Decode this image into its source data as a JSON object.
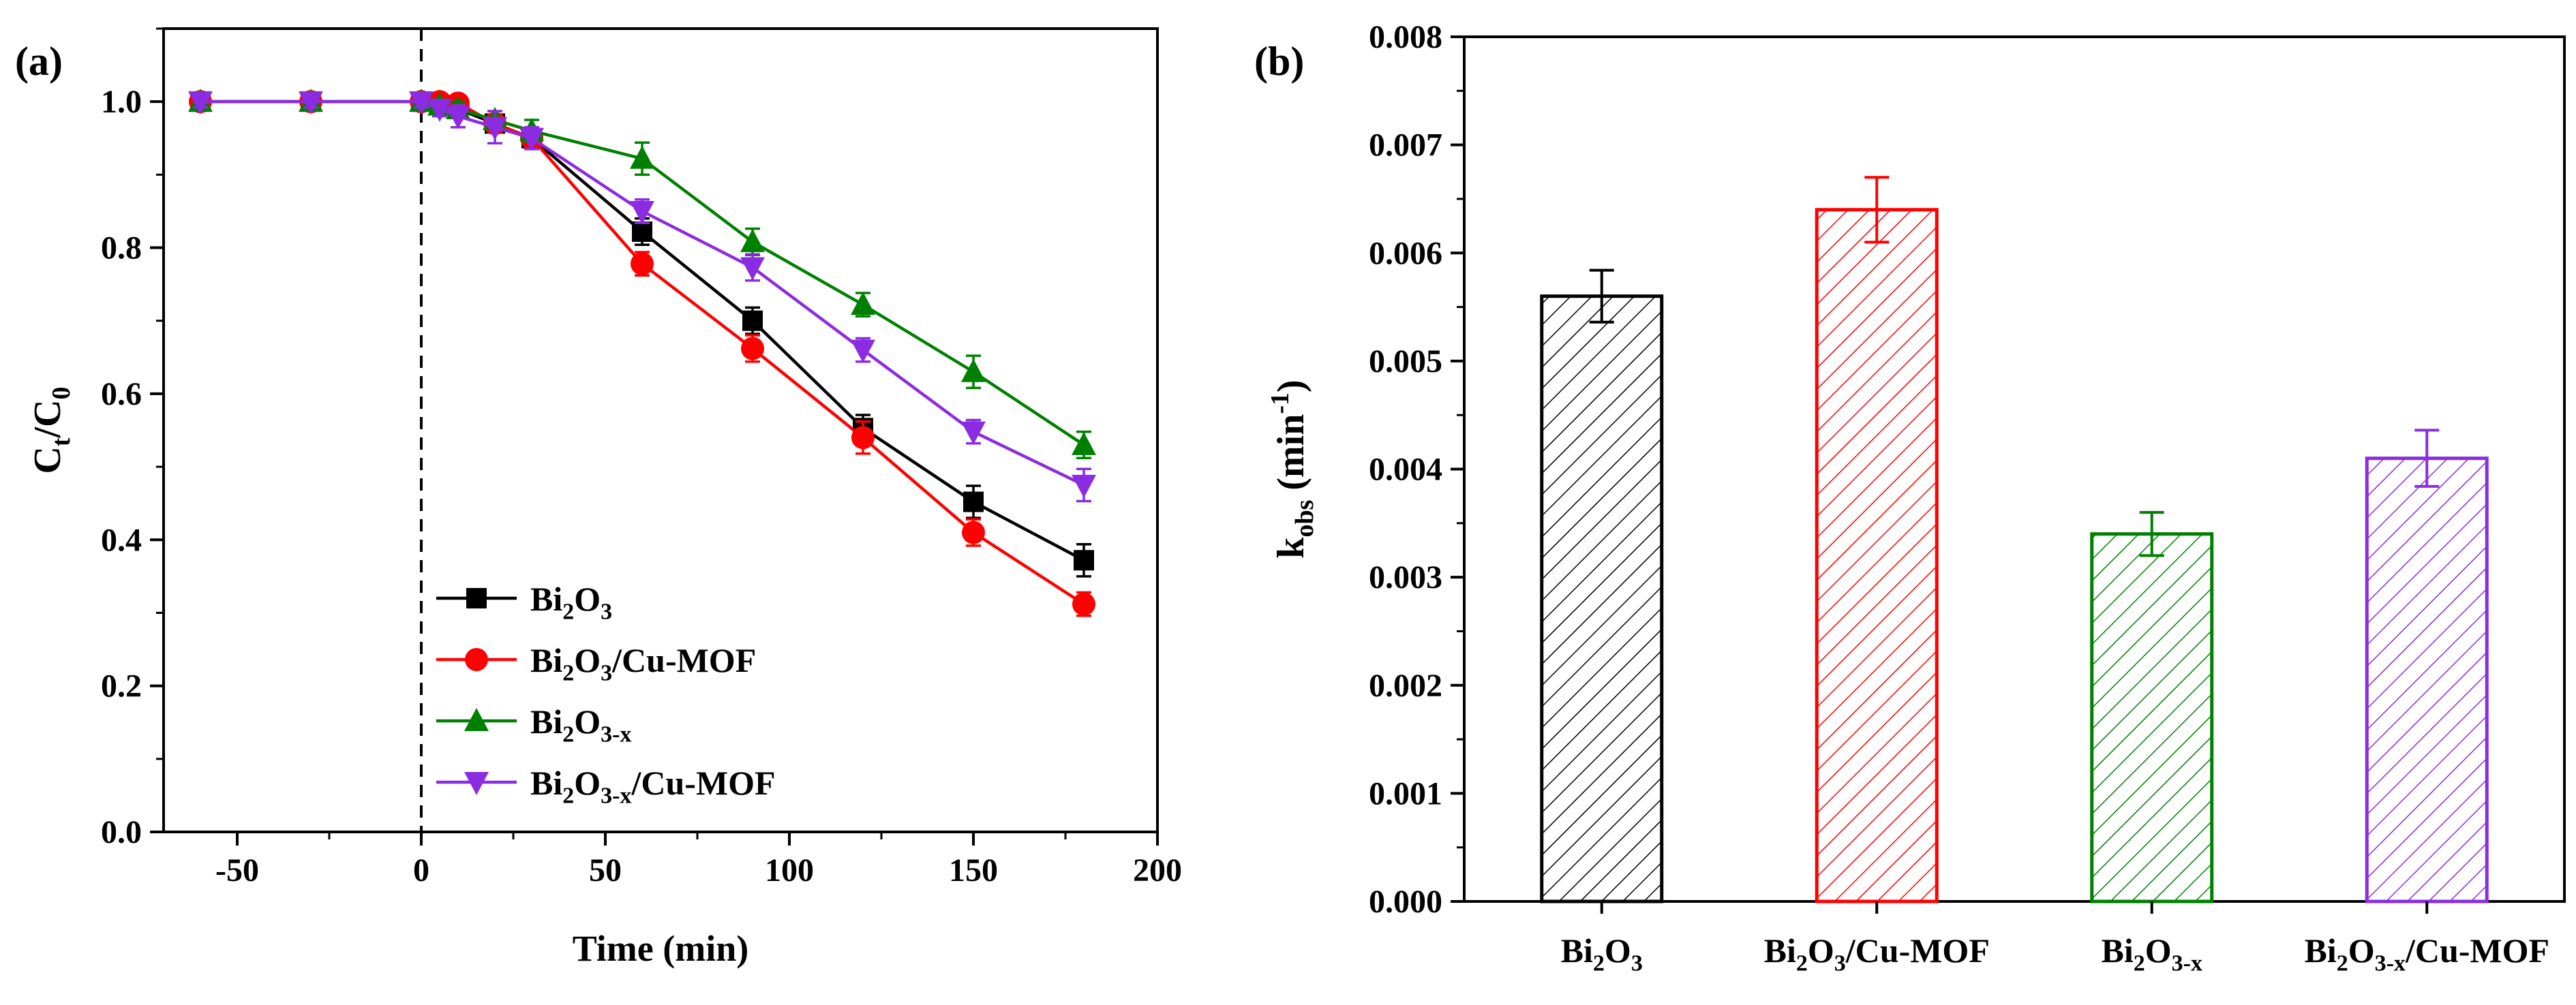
{
  "chart_data": [
    {
      "panel_label": "(a)",
      "type": "line",
      "xlabel": "Time (min)",
      "ylabel": {
        "base": "C",
        "sub1": "t",
        "mid": "/C",
        "sub2": "0"
      },
      "xlim": [
        -70,
        200
      ],
      "ylim": [
        0.0,
        1.1
      ],
      "x_ticks": [
        "-50",
        "0",
        "50",
        "100",
        "150",
        "200"
      ],
      "y_ticks": [
        "0.0",
        "0.2",
        "0.4",
        "0.6",
        "0.8",
        "1.0"
      ],
      "dashed_vline_x": 0,
      "x": [
        -60,
        -30,
        0,
        5,
        10,
        20,
        30,
        60,
        90,
        120,
        150,
        180
      ],
      "series": [
        {
          "name": "Bi2O3",
          "label": {
            "parts": [
              "Bi",
              "2",
              "O",
              "3"
            ],
            "suffix": ""
          },
          "color": "#000000",
          "marker": "square",
          "values": [
            1.0,
            1.0,
            1.0,
            0.995,
            0.99,
            0.97,
            0.95,
            0.822,
            0.7,
            0.553,
            0.452,
            0.372
          ],
          "errors": [
            0.008,
            0.008,
            0.008,
            0.008,
            0.01,
            0.012,
            0.012,
            0.018,
            0.018,
            0.018,
            0.022,
            0.022
          ]
        },
        {
          "name": "Bi2O3/Cu-MOF",
          "label": {
            "parts": [
              "Bi",
              "2",
              "O",
              "3"
            ],
            "suffix": "/Cu-MOF"
          },
          "color": "#ff0000",
          "marker": "circle",
          "values": [
            1.0,
            1.0,
            1.0,
            1.0,
            0.998,
            0.97,
            0.95,
            0.778,
            0.662,
            0.54,
            0.41,
            0.312
          ],
          "errors": [
            0.008,
            0.008,
            0.008,
            0.008,
            0.008,
            0.012,
            0.012,
            0.016,
            0.018,
            0.022,
            0.018,
            0.016
          ]
        },
        {
          "name": "Bi2O3-x",
          "label": {
            "parts": [
              "Bi",
              "2",
              "O",
              "3-x"
            ],
            "suffix": ""
          },
          "color": "#008000",
          "marker": "triangle-up",
          "values": [
            1.0,
            1.0,
            1.0,
            0.995,
            0.99,
            0.975,
            0.96,
            0.922,
            0.808,
            0.722,
            0.63,
            0.53
          ],
          "errors": [
            0.008,
            0.008,
            0.008,
            0.008,
            0.01,
            0.012,
            0.015,
            0.022,
            0.018,
            0.016,
            0.022,
            0.018
          ]
        },
        {
          "name": "Bi2O3-x/Cu-MOF",
          "label": {
            "parts": [
              "Bi",
              "2",
              "O",
              "3-x"
            ],
            "suffix": "/Cu-MOF"
          },
          "color": "#8b2be2",
          "marker": "triangle-down",
          "values": [
            1.0,
            1.0,
            1.0,
            0.99,
            0.98,
            0.965,
            0.95,
            0.85,
            0.773,
            0.66,
            0.548,
            0.475
          ],
          "errors": [
            0.008,
            0.008,
            0.008,
            0.01,
            0.015,
            0.022,
            0.015,
            0.016,
            0.018,
            0.016,
            0.016,
            0.022
          ]
        }
      ]
    },
    {
      "panel_label": "(b)",
      "type": "bar",
      "ylabel": {
        "base": "k",
        "sub": "obs",
        "mid": " (min",
        "sup": "-1",
        "end": ")"
      },
      "ylim": [
        0.0,
        0.008
      ],
      "y_ticks": [
        "0.000",
        "0.001",
        "0.002",
        "0.003",
        "0.004",
        "0.005",
        "0.006",
        "0.007",
        "0.008"
      ],
      "categories": [
        {
          "parts": [
            "Bi",
            "2",
            "O",
            "3"
          ],
          "suffix": ""
        },
        {
          "parts": [
            "Bi",
            "2",
            "O",
            "3"
          ],
          "suffix": "/Cu-MOF"
        },
        {
          "parts": [
            "Bi",
            "2",
            "O",
            "3-x"
          ],
          "suffix": ""
        },
        {
          "parts": [
            "Bi",
            "2",
            "O",
            "3-x"
          ],
          "suffix": "/Cu-MOF"
        }
      ],
      "values": [
        0.0056,
        0.0064,
        0.0034,
        0.0041
      ],
      "errors": [
        0.00024,
        0.0003,
        0.0002,
        0.00026
      ],
      "colors": [
        "#000000",
        "#ff0000",
        "#008000",
        "#8b2be2"
      ],
      "fill_pattern": "diagonal-hatch"
    }
  ]
}
